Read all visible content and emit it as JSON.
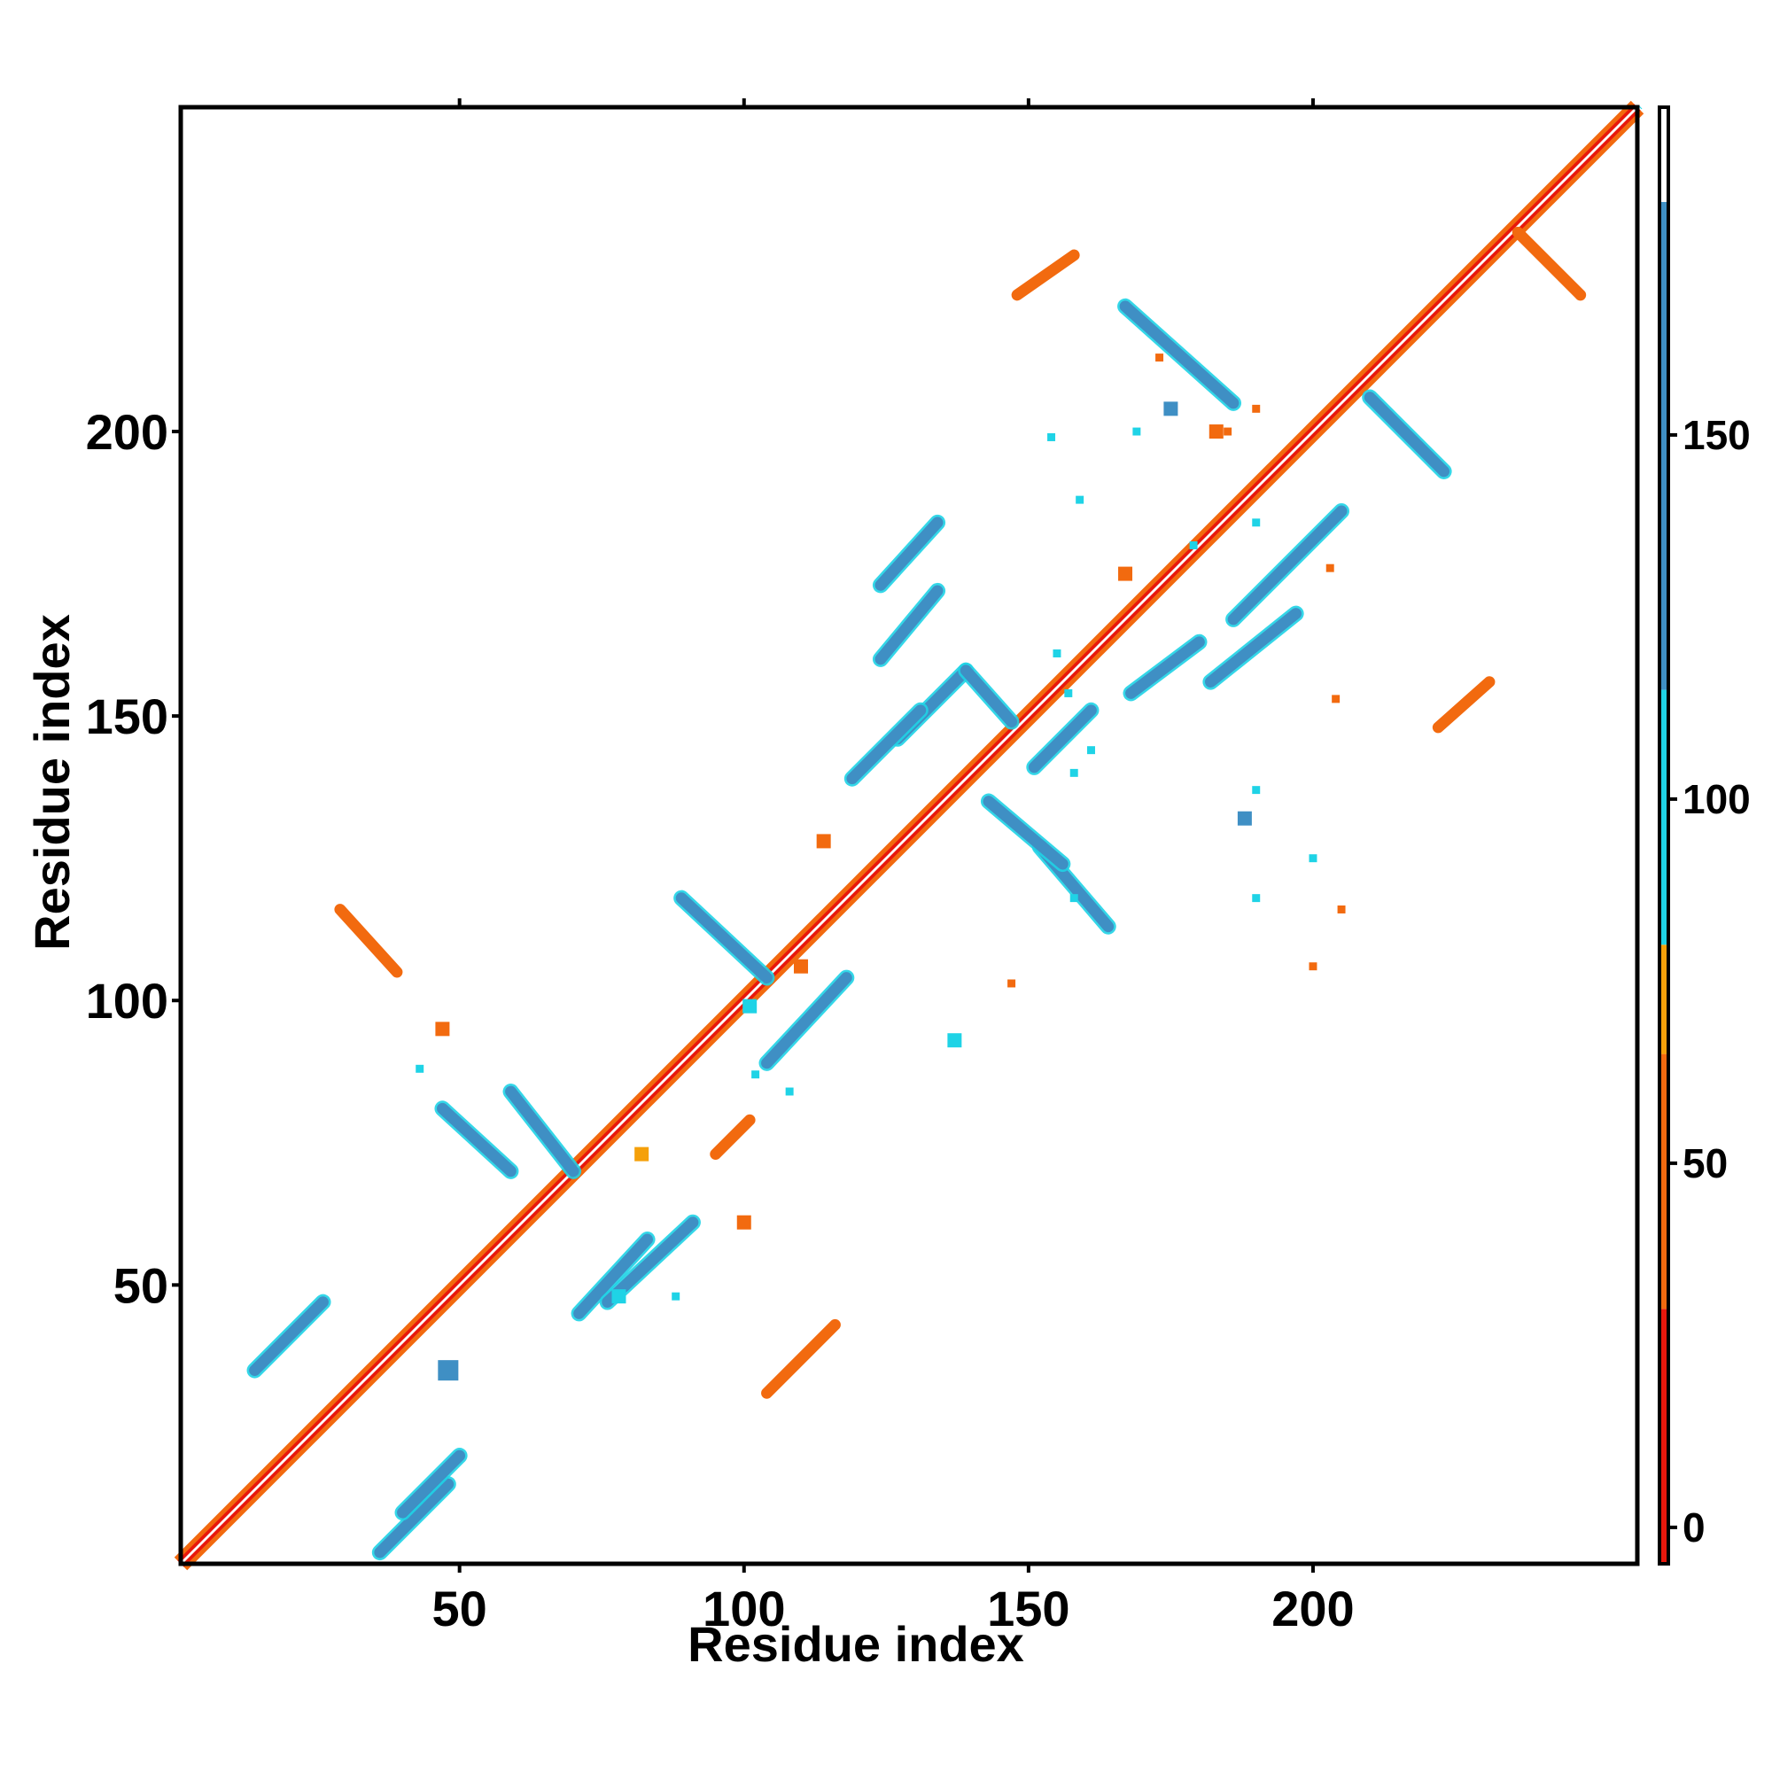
{
  "chart_data": {
    "type": "heatmap",
    "title": "",
    "xlabel": "Residue index",
    "ylabel": "Residue index",
    "xlim": [
      1,
      257
    ],
    "ylim": [
      1,
      257
    ],
    "x_ticks": [
      50,
      100,
      150,
      200
    ],
    "y_ticks": [
      50,
      100,
      150,
      200
    ],
    "colorbar": {
      "ticks": [
        0,
        50,
        100,
        150
      ],
      "range": [
        -5,
        195
      ],
      "bands": [
        {
          "from": -5,
          "to": 30,
          "color": "#e8180c"
        },
        {
          "from": 30,
          "to": 65,
          "color": "#f26a0f"
        },
        {
          "from": 65,
          "to": 80,
          "color": "#f5a00a"
        },
        {
          "from": 80,
          "to": 115,
          "color": "#1fd3e6"
        },
        {
          "from": 115,
          "to": 182,
          "color": "#3f8fc4"
        },
        {
          "from": 182,
          "to": 195,
          "color": "#ffffff"
        }
      ]
    },
    "diagonal": {
      "from": 1,
      "to": 257
    },
    "segments": [
      {
        "x": [
          14,
          26
        ],
        "y": [
          35,
          47
        ],
        "value": 130
      },
      {
        "x": [
          36,
          48
        ],
        "y": [
          3,
          15
        ],
        "value": 130
      },
      {
        "x": [
          40,
          50
        ],
        "y": [
          10,
          20
        ],
        "value": 130
      },
      {
        "x": [
          71,
          83
        ],
        "y": [
          45,
          58
        ],
        "value": 130
      },
      {
        "x": [
          59,
          70
        ],
        "y": [
          84,
          70
        ],
        "value": 130
      },
      {
        "x": [
          76,
          91
        ],
        "y": [
          47,
          61
        ],
        "value": 130
      },
      {
        "x": [
          47,
          59
        ],
        "y": [
          81,
          70
        ],
        "value": 130
      },
      {
        "x": [
          89,
          104
        ],
        "y": [
          118,
          104
        ],
        "value": 130
      },
      {
        "x": [
          104,
          118
        ],
        "y": [
          89,
          104
        ],
        "value": 130
      },
      {
        "x": [
          152,
          164
        ],
        "y": [
          127,
          113
        ],
        "value": 130
      },
      {
        "x": [
          143,
          156
        ],
        "y": [
          135,
          124
        ],
        "value": 130
      },
      {
        "x": [
          124,
          134
        ],
        "y": [
          173,
          184
        ],
        "value": 130
      },
      {
        "x": [
          167,
          186
        ],
        "y": [
          222,
          205
        ],
        "value": 130
      },
      {
        "x": [
          186,
          205
        ],
        "y": [
          167,
          186
        ],
        "value": 130
      },
      {
        "x": [
          210,
          223
        ],
        "y": [
          206,
          193
        ],
        "value": 130
      },
      {
        "x": [
          182,
          197
        ],
        "y": [
          156,
          168
        ],
        "value": 130
      },
      {
        "x": [
          168,
          180
        ],
        "y": [
          154,
          163
        ],
        "value": 130
      },
      {
        "x": [
          127,
          139
        ],
        "y": [
          146,
          158
        ],
        "value": 130
      },
      {
        "x": [
          119,
          131
        ],
        "y": [
          139,
          151
        ],
        "value": 130
      },
      {
        "x": [
          139,
          147
        ],
        "y": [
          158,
          149
        ],
        "value": 130
      },
      {
        "x": [
          151,
          161
        ],
        "y": [
          141,
          151
        ],
        "value": 130
      },
      {
        "x": [
          124,
          134
        ],
        "y": [
          160,
          172
        ],
        "value": 130
      },
      {
        "x": [
          29,
          39
        ],
        "y": [
          116,
          105
        ],
        "value": 40
      },
      {
        "x": [
          104,
          116
        ],
        "y": [
          31,
          43
        ],
        "value": 40
      },
      {
        "x": [
          236,
          247
        ],
        "y": [
          235,
          224
        ],
        "value": 40
      },
      {
        "x": [
          148,
          158
        ],
        "y": [
          224,
          231
        ],
        "value": 40
      },
      {
        "x": [
          222,
          231
        ],
        "y": [
          148,
          156
        ],
        "value": 40
      },
      {
        "x": [
          95,
          101
        ],
        "y": [
          73,
          79
        ],
        "value": 40
      }
    ],
    "blobs": [
      {
        "x": 48,
        "y": 35,
        "r": 3,
        "value": 130
      },
      {
        "x": 78,
        "y": 48,
        "r": 2,
        "value": 100
      },
      {
        "x": 88,
        "y": 48,
        "r": 1,
        "value": 100
      },
      {
        "x": 47,
        "y": 95,
        "r": 2,
        "value": 40
      },
      {
        "x": 43,
        "y": 88,
        "r": 1,
        "value": 100
      },
      {
        "x": 82,
        "y": 73,
        "r": 2,
        "value": 70
      },
      {
        "x": 100,
        "y": 61,
        "r": 2,
        "value": 40
      },
      {
        "x": 110,
        "y": 106,
        "r": 2,
        "value": 40
      },
      {
        "x": 102,
        "y": 87,
        "r": 1,
        "value": 100
      },
      {
        "x": 137,
        "y": 93,
        "r": 2,
        "value": 100
      },
      {
        "x": 147,
        "y": 103,
        "r": 1,
        "value": 40
      },
      {
        "x": 158,
        "y": 118,
        "r": 1,
        "value": 100
      },
      {
        "x": 158,
        "y": 140,
        "r": 1,
        "value": 100
      },
      {
        "x": 190,
        "y": 118,
        "r": 1,
        "value": 100
      },
      {
        "x": 190,
        "y": 137,
        "r": 1,
        "value": 100
      },
      {
        "x": 200,
        "y": 106,
        "r": 1,
        "value": 40
      },
      {
        "x": 200,
        "y": 125,
        "r": 1,
        "value": 100
      },
      {
        "x": 205,
        "y": 116,
        "r": 1,
        "value": 40
      },
      {
        "x": 188,
        "y": 132,
        "r": 2,
        "value": 130
      },
      {
        "x": 161,
        "y": 144,
        "r": 1,
        "value": 100
      },
      {
        "x": 155,
        "y": 161,
        "r": 1,
        "value": 100
      },
      {
        "x": 183,
        "y": 200,
        "r": 2,
        "value": 40
      },
      {
        "x": 167,
        "y": 175,
        "r": 2,
        "value": 40
      },
      {
        "x": 157,
        "y": 154,
        "r": 1,
        "value": 100
      },
      {
        "x": 159,
        "y": 188,
        "r": 1,
        "value": 100
      },
      {
        "x": 203,
        "y": 176,
        "r": 1,
        "value": 40
      },
      {
        "x": 204,
        "y": 153,
        "r": 1,
        "value": 40
      },
      {
        "x": 173,
        "y": 213,
        "r": 1,
        "value": 40
      },
      {
        "x": 154,
        "y": 199,
        "r": 1,
        "value": 100
      },
      {
        "x": 179,
        "y": 180,
        "r": 1,
        "value": 100
      },
      {
        "x": 175,
        "y": 204,
        "r": 2,
        "value": 130
      },
      {
        "x": 185,
        "y": 200,
        "r": 1,
        "value": 40
      },
      {
        "x": 190,
        "y": 184,
        "r": 1,
        "value": 100
      },
      {
        "x": 169,
        "y": 200,
        "r": 1,
        "value": 100
      },
      {
        "x": 190,
        "y": 204,
        "r": 1,
        "value": 40
      },
      {
        "x": 114,
        "y": 128,
        "r": 2,
        "value": 40
      },
      {
        "x": 101,
        "y": 99,
        "r": 2,
        "value": 100
      },
      {
        "x": 108,
        "y": 84,
        "r": 1,
        "value": 100
      }
    ]
  }
}
